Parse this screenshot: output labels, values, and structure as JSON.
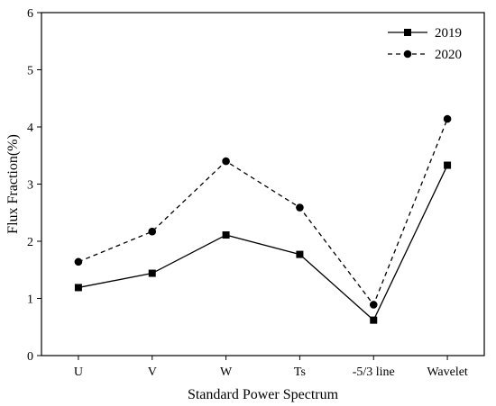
{
  "chart_data": {
    "type": "line",
    "title": "",
    "xlabel": "Standard Power Spectrum",
    "ylabel": "Flux Fraction(%)",
    "categories": [
      "U",
      "V",
      "W",
      "Ts",
      "-5/3 line",
      "Wavelet"
    ],
    "ylim": [
      0,
      6
    ],
    "yticks": [
      0,
      1,
      2,
      3,
      4,
      5,
      6
    ],
    "grid": false,
    "legend_position": "top-right",
    "series": [
      {
        "name": "2019",
        "values": [
          1.19,
          1.44,
          2.11,
          1.77,
          0.62,
          3.33
        ],
        "line_style": "solid",
        "marker": "square",
        "color": "#000000"
      },
      {
        "name": "2020",
        "values": [
          1.64,
          2.17,
          3.4,
          2.59,
          0.89,
          4.14
        ],
        "line_style": "dashed",
        "marker": "circle",
        "color": "#000000"
      }
    ]
  }
}
